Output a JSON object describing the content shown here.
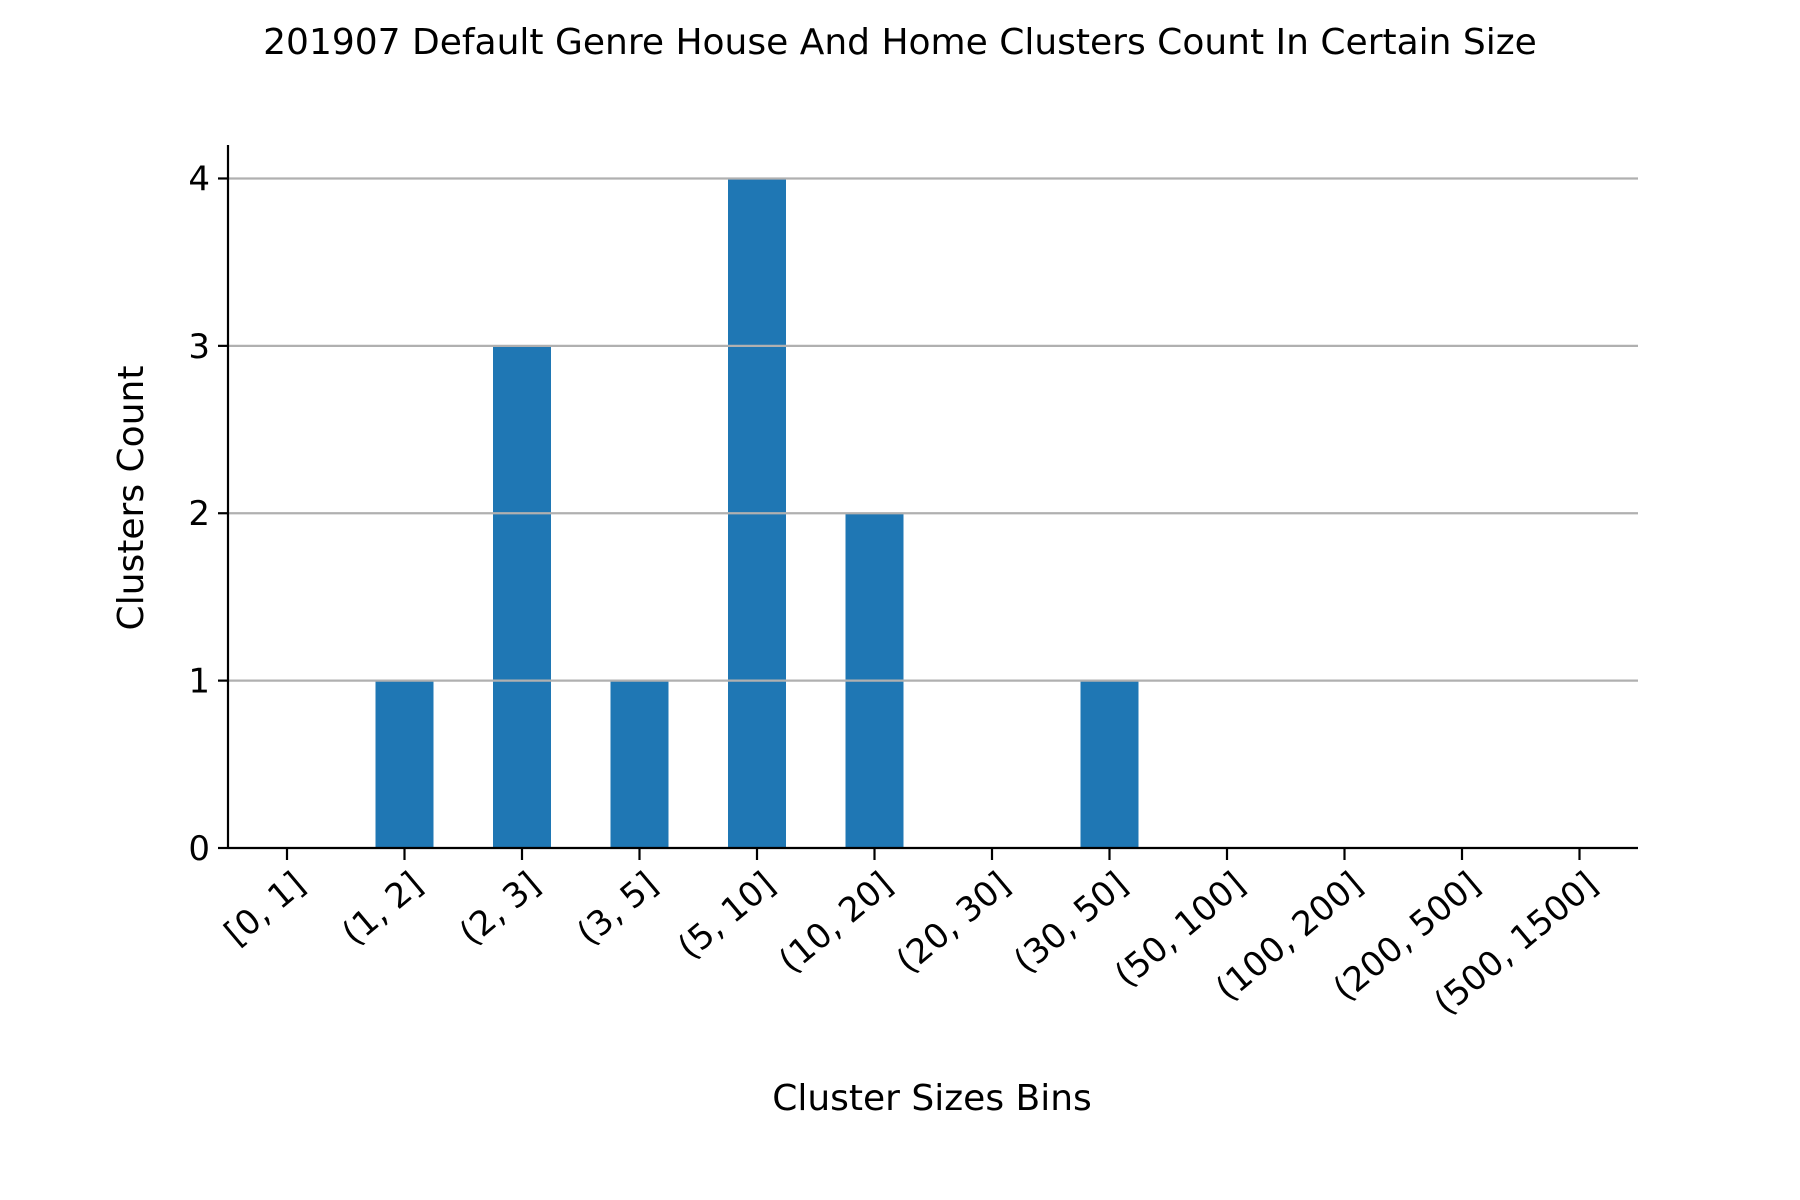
{
  "chart_data": {
    "type": "bar",
    "title": "201907 Default Genre House And Home Clusters Count In Certain Size",
    "xlabel": "Cluster Sizes Bins",
    "ylabel": "Clusters Count",
    "categories": [
      "[0, 1]",
      "(1, 2]",
      "(2, 3]",
      "(3, 5]",
      "(5, 10]",
      "(10, 20]",
      "(20, 30]",
      "(30, 50]",
      "(50, 100]",
      "(100, 200]",
      "(200, 500]",
      "(500, 1500]"
    ],
    "values": [
      0,
      1,
      3,
      1,
      4,
      2,
      0,
      1,
      0,
      0,
      0,
      0
    ],
    "yticks": [
      "0",
      "1",
      "2",
      "3",
      "4"
    ],
    "ylim": [
      0,
      4.2
    ],
    "grid": "horizontal",
    "bar_color": "#1f77b4",
    "grid_color": "#b0b0b0"
  }
}
